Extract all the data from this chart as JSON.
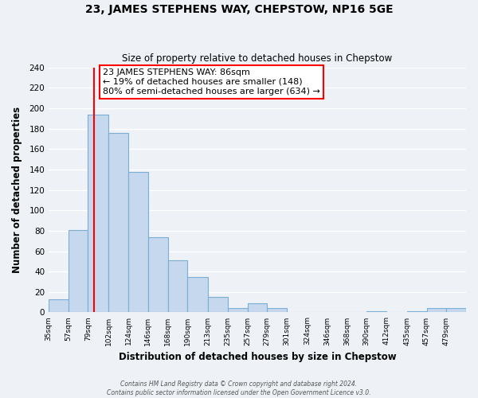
{
  "title": "23, JAMES STEPHENS WAY, CHEPSTOW, NP16 5GE",
  "subtitle": "Size of property relative to detached houses in Chepstow",
  "xlabel": "Distribution of detached houses by size in Chepstow",
  "ylabel": "Number of detached properties",
  "bar_color": "#c5d8ed",
  "bar_edge_color": "#7aaed4",
  "bin_labels": [
    "35sqm",
    "57sqm",
    "79sqm",
    "102sqm",
    "124sqm",
    "146sqm",
    "168sqm",
    "190sqm",
    "213sqm",
    "235sqm",
    "257sqm",
    "279sqm",
    "301sqm",
    "324sqm",
    "346sqm",
    "368sqm",
    "390sqm",
    "412sqm",
    "435sqm",
    "457sqm",
    "479sqm"
  ],
  "bar_heights": [
    13,
    81,
    194,
    176,
    138,
    74,
    51,
    35,
    15,
    4,
    9,
    4,
    0,
    0,
    0,
    0,
    1,
    0,
    1,
    4,
    4
  ],
  "red_line_x": 86,
  "bin_edges_values": [
    35,
    57,
    79,
    102,
    124,
    146,
    168,
    190,
    213,
    235,
    257,
    279,
    301,
    324,
    346,
    368,
    390,
    412,
    435,
    457,
    479,
    501
  ],
  "annotation_lines": [
    "23 JAMES STEPHENS WAY: 86sqm",
    "← 19% of detached houses are smaller (148)",
    "80% of semi-detached houses are larger (634) →"
  ],
  "ylim": [
    0,
    240
  ],
  "yticks": [
    0,
    20,
    40,
    60,
    80,
    100,
    120,
    140,
    160,
    180,
    200,
    220,
    240
  ],
  "footer_line1": "Contains HM Land Registry data © Crown copyright and database right 2024.",
  "footer_line2": "Contains public sector information licensed under the Open Government Licence v3.0.",
  "background_color": "#eef2f7",
  "plot_bg_color": "#eef2f7",
  "grid_color": "#ffffff"
}
